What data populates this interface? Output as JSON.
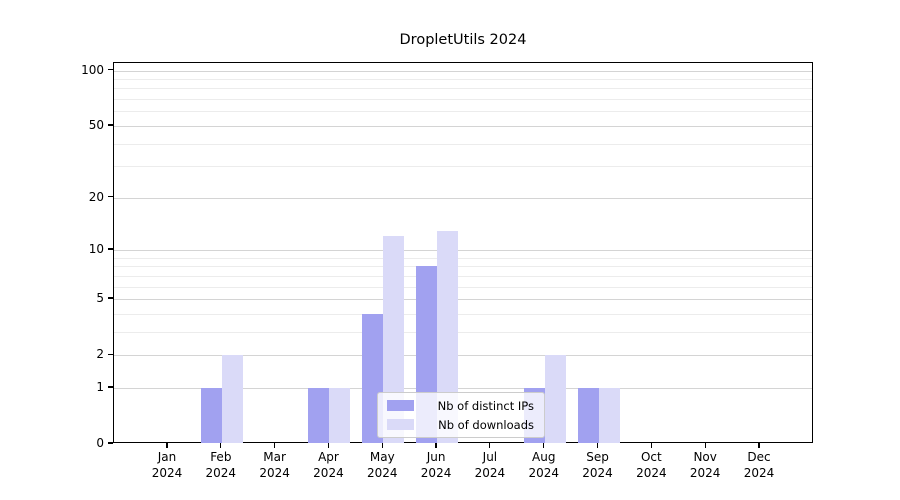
{
  "figure": {
    "background": "#ffffff"
  },
  "chart_data": {
    "type": "bar",
    "title": "DropletUtils 2024",
    "categories": [
      "Jan",
      "Feb",
      "Mar",
      "Apr",
      "May",
      "Jun",
      "Jul",
      "Aug",
      "Sep",
      "Oct",
      "Nov",
      "Dec"
    ],
    "category_year_line": "2024",
    "series": [
      {
        "name": "Nb of distinct IPs",
        "color": "#a1a1f0",
        "values": [
          0,
          1,
          0,
          1,
          4,
          8,
          0,
          1,
          1,
          0,
          0,
          0
        ]
      },
      {
        "name": "Nb of downloads",
        "color": "#dadaf8",
        "values": [
          0,
          2,
          0,
          1,
          12,
          13,
          0,
          2,
          1,
          0,
          0,
          0
        ]
      }
    ],
    "xlabel": "",
    "ylabel": "",
    "yscale": "log10(1+v)",
    "ylim": [
      0,
      110
    ],
    "yticks": [
      0,
      1,
      2,
      5,
      10,
      20,
      50,
      100
    ],
    "y_minor_ticks": [
      3,
      4,
      6,
      7,
      8,
      9,
      30,
      40,
      60,
      70,
      80,
      90
    ],
    "grid": true,
    "legend": {
      "position": "lower center",
      "background": "rgba(255,255,255,0.8)",
      "border_color": "#cccccc"
    },
    "colors": {
      "major_grid": "#d4d4d4",
      "minor_grid": "#ececec",
      "axis": "#000000",
      "text": "#000000"
    }
  }
}
